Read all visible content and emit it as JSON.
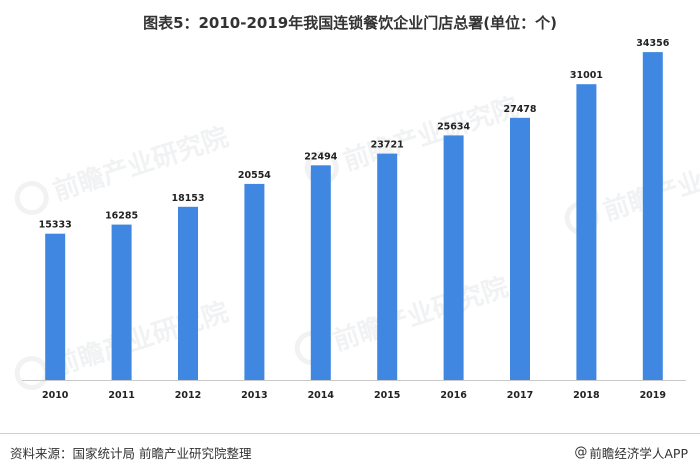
{
  "title": "图表5：2010-2019年我国连锁餐饮企业门店总署(单位：个)",
  "source": "资料来源：国家统计局 前瞻产业研究院整理",
  "credit": {
    "symbol": "@",
    "text": "前瞻经济学人APP"
  },
  "watermark_text": "前瞻产业研究院",
  "colors": {
    "bar": "#3f87e0",
    "axis": "#c8c8c8"
  },
  "chart_data": {
    "type": "bar",
    "categories": [
      "2010",
      "2011",
      "2012",
      "2013",
      "2014",
      "2015",
      "2016",
      "2017",
      "2018",
      "2019"
    ],
    "values": [
      15333,
      16285,
      18153,
      20554,
      22494,
      23721,
      25634,
      27478,
      31001,
      34356
    ],
    "title": "图表5：2010-2019年我国连锁餐饮企业门店总署(单位：个)",
    "xlabel": "",
    "ylabel": "",
    "ylim": [
      0,
      35000
    ],
    "grid": false,
    "legend": "none",
    "data_labels": true
  }
}
